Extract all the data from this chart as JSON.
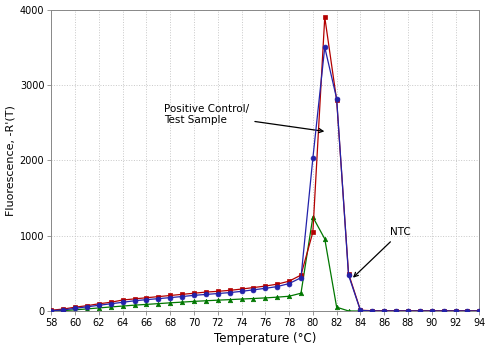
{
  "xlabel": "Temperature (°C)",
  "ylabel": "Fluorescence, -R'(T)",
  "xlim": [
    58,
    94
  ],
  "ylim": [
    0,
    4000
  ],
  "xticks": [
    58,
    60,
    62,
    64,
    66,
    68,
    70,
    72,
    74,
    76,
    78,
    80,
    82,
    84,
    86,
    88,
    90,
    92,
    94
  ],
  "yticks": [
    0,
    1000,
    2000,
    3000,
    4000
  ],
  "bg_color": "#ffffff",
  "grid_color": "#c8c8c8",
  "annotation_positive": "Positive Control/\nTest Sample",
  "annotation_ntc": "NTC",
  "red_color": "#b30000",
  "blue_color": "#2222aa",
  "green_color": "#007700",
  "series_red": {
    "x": [
      58,
      59,
      60,
      61,
      62,
      63,
      64,
      65,
      66,
      67,
      68,
      69,
      70,
      71,
      72,
      73,
      74,
      75,
      76,
      77,
      78,
      79,
      80,
      81,
      82,
      83,
      84,
      85,
      86,
      87,
      88,
      89,
      90,
      91,
      92,
      93,
      94
    ],
    "y": [
      15,
      30,
      55,
      75,
      100,
      120,
      150,
      165,
      180,
      195,
      210,
      225,
      240,
      255,
      265,
      278,
      295,
      315,
      335,
      360,
      400,
      480,
      1050,
      3900,
      2800,
      500,
      15,
      8,
      8,
      8,
      8,
      8,
      8,
      8,
      8,
      8,
      8
    ]
  },
  "series_blue": {
    "x": [
      58,
      59,
      60,
      61,
      62,
      63,
      64,
      65,
      66,
      67,
      68,
      69,
      70,
      71,
      72,
      73,
      74,
      75,
      76,
      77,
      78,
      79,
      80,
      81,
      82,
      83,
      84,
      85,
      86,
      87,
      88,
      89,
      90,
      91,
      92,
      93,
      94
    ],
    "y": [
      8,
      18,
      40,
      60,
      80,
      100,
      120,
      140,
      155,
      168,
      182,
      196,
      212,
      224,
      236,
      248,
      265,
      285,
      305,
      328,
      368,
      445,
      2030,
      3500,
      2820,
      480,
      12,
      5,
      5,
      5,
      5,
      5,
      5,
      5,
      5,
      5,
      5
    ]
  },
  "series_green": {
    "x": [
      58,
      59,
      60,
      61,
      62,
      63,
      64,
      65,
      66,
      67,
      68,
      69,
      70,
      71,
      72,
      73,
      74,
      75,
      76,
      77,
      78,
      79,
      80,
      81,
      82,
      83,
      84,
      85,
      86,
      87,
      88,
      89,
      90,
      91,
      92,
      93,
      94
    ],
    "y": [
      5,
      10,
      20,
      32,
      45,
      58,
      70,
      82,
      92,
      102,
      113,
      122,
      132,
      140,
      148,
      155,
      163,
      170,
      178,
      188,
      200,
      240,
      1250,
      960,
      55,
      5,
      3,
      3,
      3,
      3,
      3,
      3,
      3,
      3,
      3,
      3,
      3
    ]
  }
}
